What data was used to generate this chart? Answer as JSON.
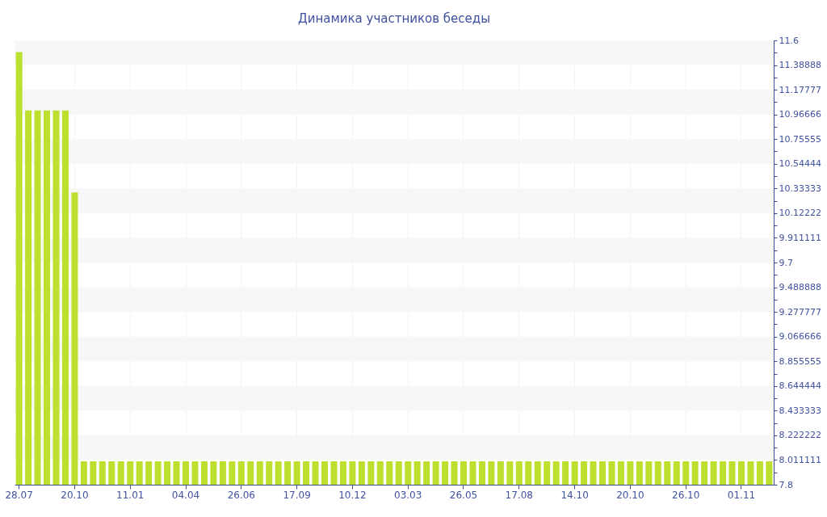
{
  "chart_data": {
    "type": "bar",
    "title": "Динамика участников беседы",
    "categories": [
      "28.07",
      null,
      null,
      null,
      null,
      null,
      "20.10",
      null,
      null,
      null,
      null,
      null,
      "11.01",
      null,
      null,
      null,
      null,
      null,
      "04.04",
      null,
      null,
      null,
      null,
      null,
      "26.06",
      null,
      null,
      null,
      null,
      null,
      "17.09",
      null,
      null,
      null,
      null,
      null,
      "10.12",
      null,
      null,
      null,
      null,
      null,
      "03.03",
      null,
      null,
      null,
      null,
      null,
      "26.05",
      null,
      null,
      null,
      null,
      null,
      "17.08",
      null,
      null,
      null,
      null,
      null,
      "14.10",
      null,
      null,
      null,
      null,
      null,
      "20.10",
      null,
      null,
      null,
      null,
      null,
      "26.10",
      null,
      null,
      null,
      null,
      null,
      "01.11",
      null,
      null,
      null
    ],
    "values": [
      11.5,
      11,
      11,
      11,
      11,
      11,
      10.3,
      8,
      8,
      8,
      8,
      8,
      8,
      8,
      8,
      8,
      8,
      8,
      8,
      8,
      8,
      8,
      8,
      8,
      8,
      8,
      8,
      8,
      8,
      8,
      8,
      8,
      8,
      8,
      8,
      8,
      8,
      8,
      8,
      8,
      8,
      8,
      8,
      8,
      8,
      8,
      8,
      8,
      8,
      8,
      8,
      8,
      8,
      8,
      8,
      8,
      8,
      8,
      8,
      8,
      8,
      8,
      8,
      8,
      8,
      8,
      8,
      8,
      8,
      8,
      8,
      8,
      8,
      8,
      8,
      8,
      8,
      8,
      8,
      8,
      8,
      8
    ],
    "color": "#bde02e",
    "ylim": [
      7.8,
      11.6
    ],
    "yticks": [
      7.8,
      {
        "value": 7.905556,
        "label": null
      },
      8.011111,
      {
        "value": 8.116667,
        "label": null
      },
      8.222222,
      {
        "value": 8.327778,
        "label": null
      },
      8.433333,
      {
        "value": 8.538889,
        "label": null
      },
      8.644444,
      {
        "value": 8.75,
        "label": null
      },
      8.855555,
      {
        "value": 8.961111,
        "label": null
      },
      9.066666,
      {
        "value": 9.172222,
        "label": null
      },
      9.277777,
      {
        "value": 9.383333,
        "label": null
      },
      9.488888,
      {
        "value": 9.594444,
        "label": null
      },
      9.7,
      {
        "value": 9.805556,
        "label": null
      },
      9.911111,
      {
        "value": 10.016667,
        "label": null
      },
      10.12222,
      {
        "value": 10.227778,
        "label": null
      },
      10.33333,
      {
        "value": 10.438889,
        "label": null
      },
      10.54444,
      {
        "value": 10.65,
        "label": null
      },
      10.75555,
      {
        "value": 10.861111,
        "label": null
      },
      10.96666,
      {
        "value": 11.072222,
        "label": null
      },
      11.17777,
      {
        "value": 11.283333,
        "label": null
      },
      11.38888,
      {
        "value": 11.494444,
        "label": null
      },
      11.6
    ],
    "grid": true
  }
}
